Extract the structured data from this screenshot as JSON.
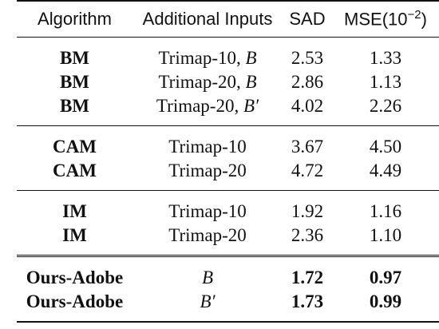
{
  "table": {
    "headers": {
      "algorithm": "Algorithm",
      "inputs": "Additional Inputs",
      "sad": "SAD",
      "mse": "MSE(10",
      "mse_exp": "−2",
      "mse_close": ")"
    },
    "groups": [
      {
        "rows": [
          {
            "algorithm": "BM",
            "inputs_text": "Trimap-10,",
            "inputs_math": "B",
            "sad": "2.53",
            "mse": "1.33",
            "bold_values": false
          },
          {
            "algorithm": "BM",
            "inputs_text": "Trimap-20,",
            "inputs_math": "B",
            "sad": "2.86",
            "mse": "1.13",
            "bold_values": false
          },
          {
            "algorithm": "BM",
            "inputs_text": "Trimap-20,",
            "inputs_math": "B′",
            "sad": "4.02",
            "mse": "2.26",
            "bold_values": false
          }
        ]
      },
      {
        "rows": [
          {
            "algorithm": "CAM",
            "inputs_text": "Trimap-10",
            "inputs_math": "",
            "sad": "3.67",
            "mse": "4.50",
            "bold_values": false
          },
          {
            "algorithm": "CAM",
            "inputs_text": "Trimap-20",
            "inputs_math": "",
            "sad": "4.72",
            "mse": "4.49",
            "bold_values": false
          }
        ]
      },
      {
        "rows": [
          {
            "algorithm": "IM",
            "inputs_text": "Trimap-10",
            "inputs_math": "",
            "sad": "1.92",
            "mse": "1.16",
            "bold_values": false
          },
          {
            "algorithm": "IM",
            "inputs_text": "Trimap-20",
            "inputs_math": "",
            "sad": "2.36",
            "mse": "1.10",
            "bold_values": false
          }
        ]
      },
      {
        "rows": [
          {
            "algorithm": "Ours-Adobe",
            "inputs_text": "",
            "inputs_math": "B",
            "sad": "1.72",
            "mse": "0.97",
            "bold_values": true
          },
          {
            "algorithm": "Ours-Adobe",
            "inputs_text": "",
            "inputs_math": "B′",
            "sad": "1.73",
            "mse": "0.99",
            "bold_values": true
          }
        ]
      }
    ]
  }
}
